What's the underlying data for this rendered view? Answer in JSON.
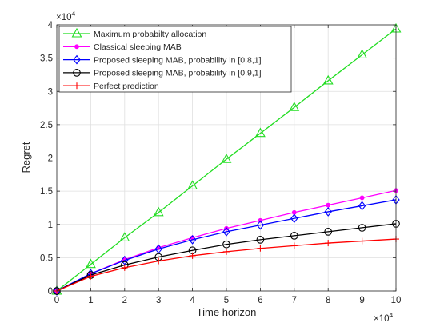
{
  "chart_data": {
    "type": "line",
    "xlabel": "Time horizon",
    "ylabel": "Regret",
    "x_exponent_label": "×10",
    "x_exponent_power": "4",
    "y_exponent_label": "×10",
    "y_exponent_power": "4",
    "x": [
      0,
      1,
      2,
      3,
      4,
      5,
      6,
      7,
      8,
      9,
      10
    ],
    "x_ticks": [
      "0",
      "1",
      "2",
      "3",
      "4",
      "5",
      "6",
      "7",
      "8",
      "9",
      "10"
    ],
    "y_ticks": [
      "0",
      "0.5",
      "1",
      "1.5",
      "2",
      "2.5",
      "3",
      "3.5",
      "4"
    ],
    "xlim": [
      0,
      10
    ],
    "ylim": [
      0,
      4
    ],
    "grid": true,
    "legend_position": "top-left",
    "series": [
      {
        "name": "Maximum probabilty allocation",
        "color": "#22dd22",
        "marker": "triangle",
        "values": [
          0,
          0.4,
          0.8,
          1.18,
          1.58,
          1.98,
          2.37,
          2.76,
          3.16,
          3.55,
          3.94
        ]
      },
      {
        "name": "Classical sleeping MAB",
        "color": "#ff00ff",
        "marker": "dot",
        "values": [
          0,
          0.26,
          0.47,
          0.65,
          0.8,
          0.94,
          1.06,
          1.18,
          1.29,
          1.4,
          1.51
        ]
      },
      {
        "name": "Proposed sleeping MAB, probability in [0.8,1]",
        "color": "#0000ff",
        "marker": "diamond",
        "values": [
          0,
          0.26,
          0.46,
          0.63,
          0.77,
          0.89,
          0.99,
          1.09,
          1.19,
          1.28,
          1.37
        ]
      },
      {
        "name": "Proposed sleeping MAB, probability in [0.9,1]",
        "color": "#000000",
        "marker": "circle",
        "values": [
          0,
          0.24,
          0.39,
          0.51,
          0.61,
          0.7,
          0.77,
          0.83,
          0.89,
          0.95,
          1.01
        ]
      },
      {
        "name": "Perfect prediction",
        "color": "#ff0000",
        "marker": "plus",
        "values": [
          0,
          0.22,
          0.35,
          0.45,
          0.53,
          0.59,
          0.64,
          0.68,
          0.72,
          0.75,
          0.78
        ]
      }
    ]
  }
}
